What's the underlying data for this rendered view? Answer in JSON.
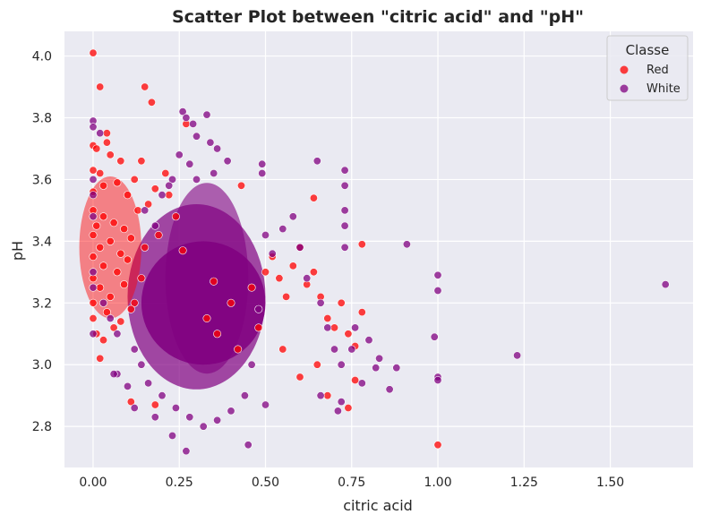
{
  "chart_data": {
    "type": "scatter",
    "title": "Scatter Plot between \"citric acid\" and \"pH\"",
    "xlabel": "citric acid",
    "ylabel": "pH",
    "xlim": [
      -0.083,
      1.74
    ],
    "ylim": [
      2.667,
      4.08
    ],
    "x_ticks": [
      0.0,
      0.25,
      0.5,
      0.75,
      1.0,
      1.25,
      1.5
    ],
    "x_tick_labels": [
      "0.00",
      "0.25",
      "0.50",
      "0.75",
      "1.00",
      "1.25",
      "1.50"
    ],
    "y_ticks": [
      2.8,
      3.0,
      3.2,
      3.4,
      3.6,
      3.8,
      4.0
    ],
    "y_tick_labels": [
      "2.8",
      "3.0",
      "3.2",
      "3.4",
      "3.6",
      "3.8",
      "4.0"
    ],
    "grid": true,
    "background": "#eaeaf2",
    "legend": {
      "title": "Classe",
      "position": "top-right",
      "entries": [
        {
          "label": "Red",
          "color": "#ff0000"
        },
        {
          "label": "White",
          "color": "#800080"
        }
      ]
    },
    "series": [
      {
        "name": "Red",
        "color": "#ff0000",
        "points": [
          [
            0.0,
            4.01
          ],
          [
            0.02,
            3.9
          ],
          [
            0.15,
            3.9
          ],
          [
            0.17,
            3.85
          ],
          [
            0.27,
            3.78
          ],
          [
            0.0,
            3.71
          ],
          [
            0.01,
            3.7
          ],
          [
            0.04,
            3.72
          ],
          [
            0.04,
            3.75
          ],
          [
            0.05,
            3.68
          ],
          [
            0.0,
            3.63
          ],
          [
            0.02,
            3.62
          ],
          [
            0.08,
            3.66
          ],
          [
            0.14,
            3.66
          ],
          [
            0.21,
            3.62
          ],
          [
            0.0,
            3.56
          ],
          [
            0.03,
            3.58
          ],
          [
            0.07,
            3.59
          ],
          [
            0.1,
            3.55
          ],
          [
            0.12,
            3.6
          ],
          [
            0.18,
            3.57
          ],
          [
            0.22,
            3.55
          ],
          [
            0.43,
            3.58
          ],
          [
            0.64,
            3.54
          ],
          [
            0.0,
            3.5
          ],
          [
            0.01,
            3.45
          ],
          [
            0.03,
            3.48
          ],
          [
            0.06,
            3.46
          ],
          [
            0.09,
            3.44
          ],
          [
            0.13,
            3.5
          ],
          [
            0.16,
            3.52
          ],
          [
            0.24,
            3.48
          ],
          [
            0.0,
            3.42
          ],
          [
            0.02,
            3.38
          ],
          [
            0.05,
            3.4
          ],
          [
            0.08,
            3.36
          ],
          [
            0.11,
            3.41
          ],
          [
            0.15,
            3.38
          ],
          [
            0.19,
            3.42
          ],
          [
            0.26,
            3.37
          ],
          [
            0.0,
            3.35
          ],
          [
            0.03,
            3.32
          ],
          [
            0.07,
            3.3
          ],
          [
            0.1,
            3.34
          ],
          [
            0.14,
            3.28
          ],
          [
            0.0,
            3.28
          ],
          [
            0.02,
            3.25
          ],
          [
            0.05,
            3.22
          ],
          [
            0.09,
            3.26
          ],
          [
            0.12,
            3.2
          ],
          [
            0.0,
            3.2
          ],
          [
            0.04,
            3.17
          ],
          [
            0.08,
            3.14
          ],
          [
            0.11,
            3.18
          ],
          [
            0.0,
            3.15
          ],
          [
            0.01,
            3.1
          ],
          [
            0.03,
            3.08
          ],
          [
            0.06,
            3.12
          ],
          [
            0.02,
            3.02
          ],
          [
            0.11,
            2.88
          ],
          [
            0.18,
            2.87
          ],
          [
            0.35,
            3.27
          ],
          [
            0.4,
            3.2
          ],
          [
            0.46,
            3.25
          ],
          [
            0.5,
            3.3
          ],
          [
            0.52,
            3.35
          ],
          [
            0.54,
            3.28
          ],
          [
            0.56,
            3.22
          ],
          [
            0.58,
            3.32
          ],
          [
            0.6,
            3.38
          ],
          [
            0.62,
            3.26
          ],
          [
            0.64,
            3.3
          ],
          [
            0.66,
            3.22
          ],
          [
            0.68,
            3.15
          ],
          [
            0.7,
            3.12
          ],
          [
            0.72,
            3.2
          ],
          [
            0.74,
            3.1
          ],
          [
            0.76,
            3.06
          ],
          [
            0.78,
            3.17
          ],
          [
            0.78,
            3.39
          ],
          [
            0.76,
            2.95
          ],
          [
            0.74,
            2.86
          ],
          [
            0.68,
            2.9
          ],
          [
            0.65,
            3.0
          ],
          [
            0.6,
            2.96
          ],
          [
            0.55,
            3.05
          ],
          [
            0.48,
            3.12
          ],
          [
            0.42,
            3.05
          ],
          [
            0.36,
            3.1
          ],
          [
            0.33,
            3.15
          ],
          [
            1.0,
            2.74
          ]
        ]
      },
      {
        "name": "White",
        "color": "#800080",
        "points": [
          [
            0.0,
            3.79
          ],
          [
            0.0,
            3.77
          ],
          [
            0.26,
            3.82
          ],
          [
            0.27,
            3.8
          ],
          [
            0.33,
            3.81
          ],
          [
            0.29,
            3.78
          ],
          [
            0.02,
            3.75
          ],
          [
            0.3,
            3.74
          ],
          [
            0.34,
            3.72
          ],
          [
            0.36,
            3.7
          ],
          [
            0.25,
            3.68
          ],
          [
            0.28,
            3.65
          ],
          [
            0.39,
            3.66
          ],
          [
            0.49,
            3.65
          ],
          [
            0.49,
            3.62
          ],
          [
            0.35,
            3.62
          ],
          [
            0.23,
            3.6
          ],
          [
            0.3,
            3.6
          ],
          [
            0.65,
            3.66
          ],
          [
            0.73,
            3.63
          ],
          [
            0.73,
            3.58
          ],
          [
            0.73,
            3.5
          ],
          [
            0.73,
            3.45
          ],
          [
            0.73,
            3.38
          ],
          [
            0.91,
            3.39
          ],
          [
            1.0,
            3.29
          ],
          [
            1.0,
            3.24
          ],
          [
            1.66,
            3.26
          ],
          [
            0.99,
            3.09
          ],
          [
            1.23,
            3.03
          ],
          [
            1.0,
            2.96
          ],
          [
            1.0,
            2.95
          ],
          [
            0.86,
            2.92
          ],
          [
            0.88,
            2.99
          ],
          [
            0.82,
            2.99
          ],
          [
            0.8,
            3.08
          ],
          [
            0.83,
            3.02
          ],
          [
            0.78,
            2.94
          ],
          [
            0.72,
            2.88
          ],
          [
            0.71,
            2.85
          ],
          [
            0.66,
            2.9
          ],
          [
            0.5,
            2.87
          ],
          [
            0.45,
            2.74
          ],
          [
            0.27,
            2.72
          ],
          [
            0.23,
            2.77
          ],
          [
            0.18,
            2.83
          ],
          [
            0.12,
            2.86
          ],
          [
            0.1,
            2.93
          ],
          [
            0.07,
            2.97
          ],
          [
            0.06,
            2.97
          ],
          [
            0.0,
            3.6
          ],
          [
            0.0,
            3.55
          ],
          [
            0.0,
            3.48
          ],
          [
            0.0,
            3.3
          ],
          [
            0.0,
            3.25
          ],
          [
            0.03,
            3.2
          ],
          [
            0.05,
            3.15
          ],
          [
            0.07,
            3.1
          ],
          [
            0.0,
            3.1
          ],
          [
            0.15,
            3.5
          ],
          [
            0.18,
            3.45
          ],
          [
            0.2,
            3.55
          ],
          [
            0.22,
            3.58
          ],
          [
            0.58,
            3.48
          ],
          [
            0.55,
            3.44
          ],
          [
            0.6,
            3.38
          ],
          [
            0.62,
            3.28
          ],
          [
            0.66,
            3.2
          ],
          [
            0.68,
            3.12
          ],
          [
            0.7,
            3.05
          ],
          [
            0.72,
            3.0
          ],
          [
            0.75,
            3.05
          ],
          [
            0.76,
            3.12
          ],
          [
            0.5,
            3.42
          ],
          [
            0.52,
            3.36
          ],
          [
            0.48,
            3.18
          ],
          [
            0.46,
            3.0
          ],
          [
            0.44,
            2.9
          ],
          [
            0.4,
            2.85
          ],
          [
            0.36,
            2.82
          ],
          [
            0.32,
            2.8
          ],
          [
            0.28,
            2.83
          ],
          [
            0.24,
            2.86
          ],
          [
            0.2,
            2.9
          ],
          [
            0.16,
            2.94
          ],
          [
            0.14,
            3.0
          ],
          [
            0.12,
            3.05
          ]
        ]
      }
    ]
  }
}
